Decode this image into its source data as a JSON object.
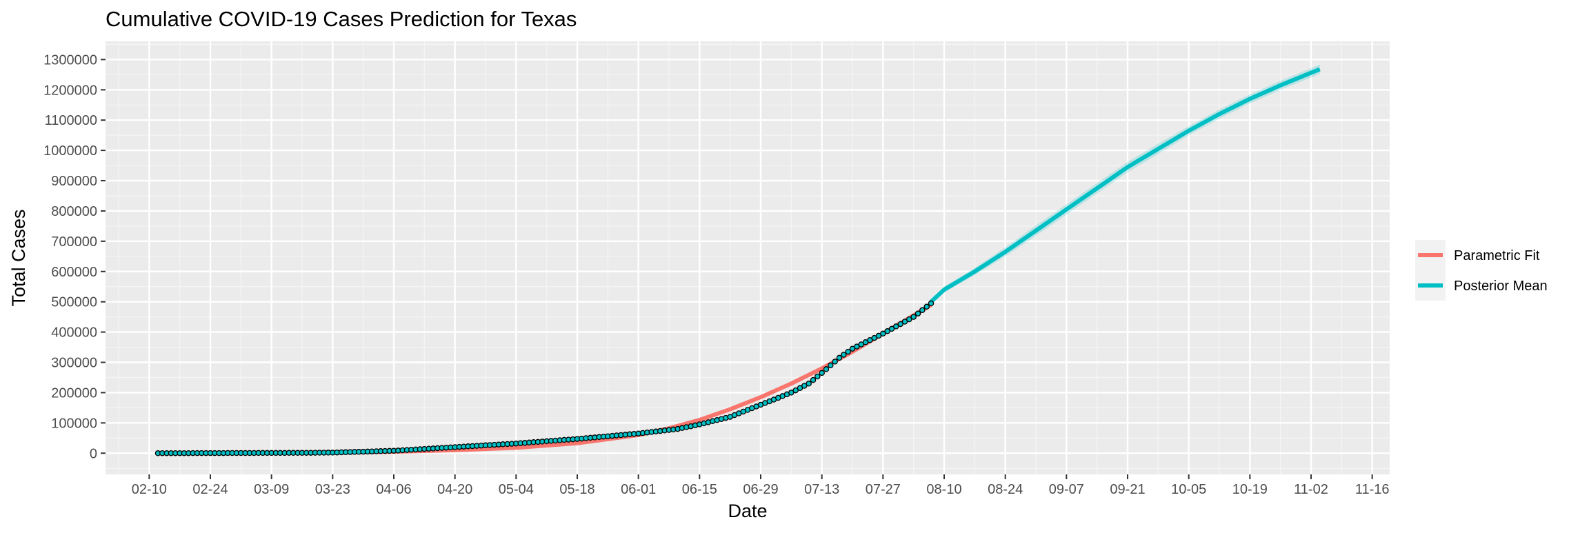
{
  "chart_data": {
    "type": "line",
    "title": "Cumulative COVID-19 Cases Prediction for Texas",
    "xlabel": "Date",
    "ylabel": "Total Cases",
    "x_axis_type": "date",
    "x_tick_labels": [
      "02-10",
      "02-24",
      "03-09",
      "03-23",
      "04-06",
      "04-20",
      "05-04",
      "05-18",
      "06-01",
      "06-15",
      "06-29",
      "07-13",
      "07-27",
      "08-10",
      "08-24",
      "09-07",
      "09-21",
      "10-05",
      "10-19",
      "11-02",
      "11-16"
    ],
    "x_ticks": [
      "2020-02-10",
      "2020-02-24",
      "2020-03-09",
      "2020-03-23",
      "2020-04-06",
      "2020-04-20",
      "2020-05-04",
      "2020-05-18",
      "2020-06-01",
      "2020-06-15",
      "2020-06-29",
      "2020-07-13",
      "2020-07-27",
      "2020-08-10",
      "2020-08-24",
      "2020-09-07",
      "2020-09-21",
      "2020-10-05",
      "2020-10-19",
      "2020-11-02",
      "2020-11-16"
    ],
    "xlim": [
      "2020-01-31",
      "2020-11-20"
    ],
    "ylim": [
      -70000,
      1360000
    ],
    "y_ticks": [
      0,
      100000,
      200000,
      300000,
      400000,
      500000,
      600000,
      700000,
      800000,
      900000,
      1000000,
      1100000,
      1200000,
      1300000
    ],
    "y_tick_labels": [
      "0",
      "100000",
      "200000",
      "300000",
      "400000",
      "500000",
      "600000",
      "700000",
      "800000",
      "900000",
      "1000000",
      "1100000",
      "1200000",
      "1300000"
    ],
    "grid": true,
    "legend_position": "right",
    "series": [
      {
        "name": "Parametric Fit",
        "color": "#F8766D",
        "kind": "line",
        "x": [
          "2020-02-12",
          "2020-02-24",
          "2020-03-09",
          "2020-03-23",
          "2020-04-06",
          "2020-04-20",
          "2020-05-04",
          "2020-05-18",
          "2020-06-01",
          "2020-06-08",
          "2020-06-15",
          "2020-06-22",
          "2020-06-29",
          "2020-07-06",
          "2020-07-13",
          "2020-07-20",
          "2020-07-27",
          "2020-08-03",
          "2020-08-07"
        ],
        "y": [
          0,
          200,
          700,
          2000,
          5000,
          10000,
          18000,
          33000,
          60000,
          82000,
          110000,
          145000,
          185000,
          230000,
          280000,
          335000,
          395000,
          455000,
          490000
        ]
      },
      {
        "name": "Posterior Mean",
        "color": "#00BFC4",
        "kind": "line",
        "x": [
          "2020-08-07",
          "2020-08-10",
          "2020-08-17",
          "2020-08-24",
          "2020-08-31",
          "2020-09-07",
          "2020-09-14",
          "2020-09-21",
          "2020-09-28",
          "2020-10-05",
          "2020-10-12",
          "2020-10-19",
          "2020-10-26",
          "2020-11-04"
        ],
        "y": [
          500000,
          540000,
          600000,
          665000,
          735000,
          805000,
          875000,
          945000,
          1005000,
          1065000,
          1120000,
          1170000,
          1215000,
          1268000
        ],
        "band_low": [
          495000,
          530000,
          588000,
          650000,
          718000,
          788000,
          858000,
          928000,
          988000,
          1050000,
          1105000,
          1155000,
          1200000,
          1252000
        ],
        "band_high": [
          505000,
          550000,
          612000,
          680000,
          752000,
          822000,
          892000,
          962000,
          1022000,
          1080000,
          1135000,
          1185000,
          1230000,
          1284000
        ]
      }
    ],
    "observed_points": {
      "x_start": "2020-02-12",
      "x_end": "2020-08-07",
      "knot_x": [
        "2020-02-12",
        "2020-03-15",
        "2020-03-23",
        "2020-04-06",
        "2020-04-20",
        "2020-05-04",
        "2020-05-18",
        "2020-06-01",
        "2020-06-10",
        "2020-06-15",
        "2020-06-22",
        "2020-06-29",
        "2020-07-06",
        "2020-07-10",
        "2020-07-13",
        "2020-07-17",
        "2020-07-20",
        "2020-07-27",
        "2020-08-03",
        "2020-08-07"
      ],
      "knot_y": [
        0,
        1000,
        2000,
        8000,
        20000,
        32000,
        47000,
        65000,
        80000,
        95000,
        120000,
        160000,
        200000,
        230000,
        265000,
        315000,
        345000,
        395000,
        450000,
        495000
      ]
    }
  }
}
